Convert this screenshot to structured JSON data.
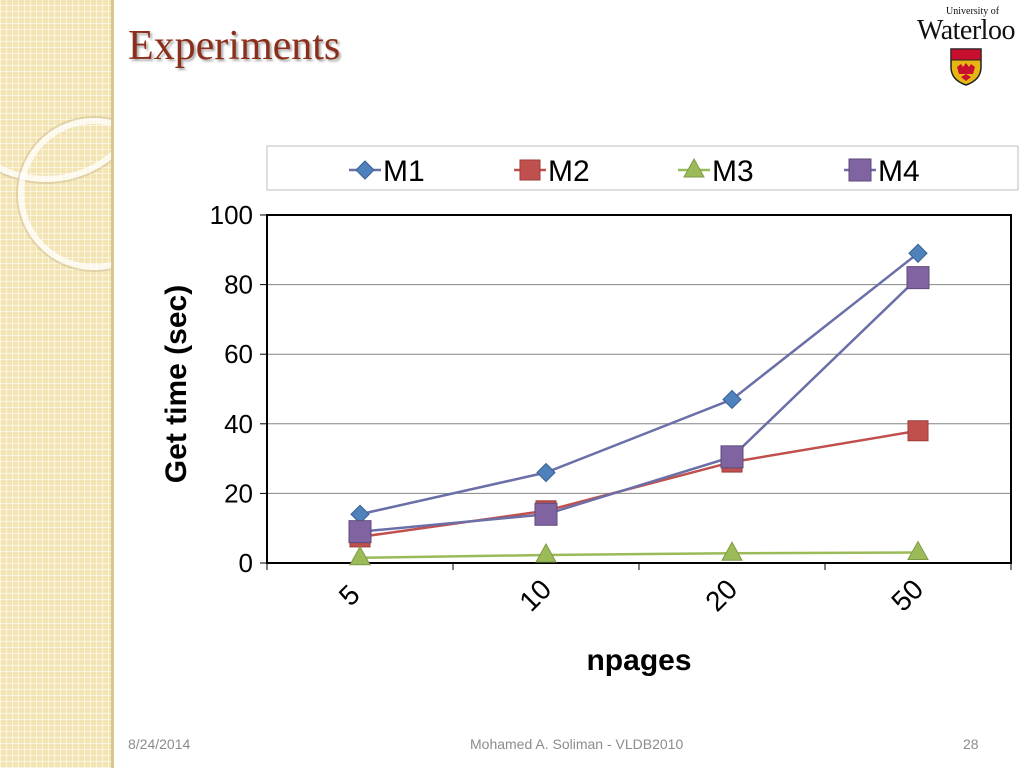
{
  "slide": {
    "title": "Experiments",
    "logo": {
      "line1": "University of",
      "line2": "Waterloo"
    },
    "footer": {
      "date": "8/24/2014",
      "center": "Mohamed A. Soliman - VLDB2010",
      "page": "28"
    }
  },
  "chart_data": {
    "type": "line",
    "categories": [
      "5",
      "10",
      "20",
      "50"
    ],
    "xlabel": "npages",
    "ylabel": "Get time (sec)",
    "ylim": [
      0,
      100
    ],
    "yticks": [
      0,
      20,
      40,
      60,
      80,
      100
    ],
    "grid": true,
    "legend_position": "top",
    "series": [
      {
        "name": "M1",
        "values": [
          14,
          26,
          47,
          89
        ],
        "color": "#4f81bd",
        "marker": "diamond"
      },
      {
        "name": "M2",
        "values": [
          7.5,
          15,
          29,
          38
        ],
        "color": "#c0504d",
        "marker": "square"
      },
      {
        "name": "M3",
        "values": [
          1.5,
          2.3,
          2.8,
          3.0
        ],
        "color": "#9bbb59",
        "marker": "triangle"
      },
      {
        "name": "M4",
        "values": [
          9,
          14,
          30.5,
          82
        ],
        "color": "#8064a2",
        "marker": "square-large"
      }
    ]
  }
}
